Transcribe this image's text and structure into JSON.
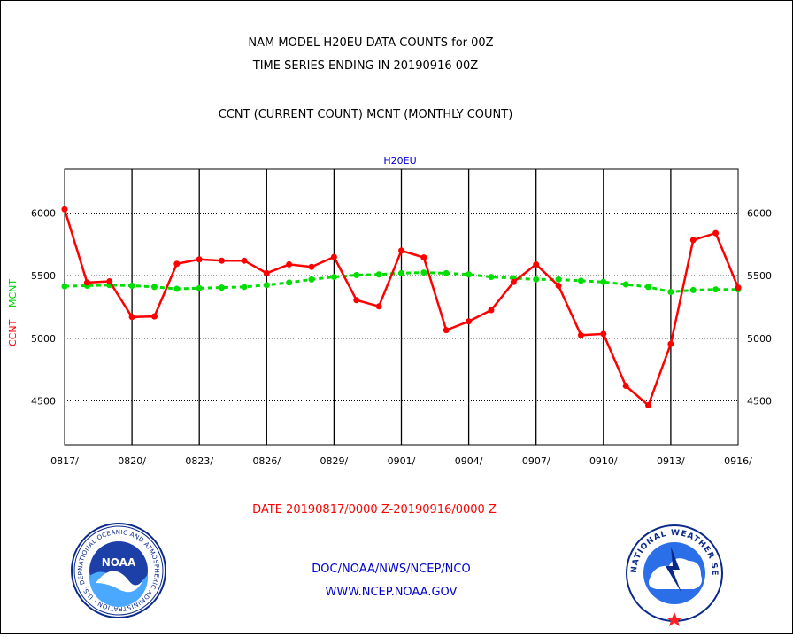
{
  "header": {
    "title_line1": "NAM MODEL H20EU DATA COUNTS for 00Z",
    "title_line2": "TIME SERIES ENDING IN 20190916 00Z",
    "subtitle": "CCNT (CURRENT COUNT) MCNT (MONTHLY COUNT)"
  },
  "footer": {
    "date_range": "DATE 20190817/0000 Z-20190916/0000 Z",
    "org_line": "DOC/NOAA/NWS/NCEP/NCO",
    "url_line": "WWW.NCEP.NOAA.GOV"
  },
  "logos": {
    "noaa_text": "NOAA",
    "noaa_ring_text": "NATIONAL OCEANIC AND ATMOSPHERIC ADMINISTRATION · U.S. DEPARTMENT OF COMMERCE ·",
    "nws_ring_text": "NATIONAL WEATHER SERVICE"
  },
  "colors": {
    "ccnt": "#ff0000",
    "mcnt": "#00dd00",
    "label_blue": "#0000cc",
    "grid": "#000000"
  },
  "chart_data": {
    "type": "line",
    "title": "H20EU",
    "ylabel_ccnt": "CCNT",
    "ylabel_mcnt": "MCNT",
    "ylim": [
      4150,
      6350
    ],
    "yticks": [
      4500,
      5000,
      5500,
      6000
    ],
    "xticks": [
      "0817/",
      "0820/",
      "0823/",
      "0826/",
      "0829/",
      "0901/",
      "0904/",
      "0907/",
      "0910/",
      "0913/",
      "0916/"
    ],
    "grid": true,
    "x_dates": [
      "0817",
      "0818",
      "0819",
      "0820",
      "0821",
      "0822",
      "0823",
      "0824",
      "0825",
      "0826",
      "0827",
      "0828",
      "0829",
      "0830",
      "0831",
      "0901",
      "0902",
      "0903",
      "0904",
      "0905",
      "0906",
      "0907",
      "0908",
      "0909",
      "0910",
      "0911",
      "0912",
      "0913",
      "0914",
      "0915",
      "0916"
    ],
    "series": [
      {
        "name": "CCNT",
        "style": "solid",
        "values": [
          6030,
          5445,
          5455,
          5170,
          5175,
          5595,
          5630,
          5620,
          5620,
          5520,
          5590,
          5570,
          5650,
          5305,
          5255,
          5700,
          5645,
          5065,
          5135,
          5225,
          5450,
          5590,
          5420,
          5025,
          5035,
          4620,
          4465,
          4955,
          5785,
          5840,
          5405
        ]
      },
      {
        "name": "MCNT",
        "style": "dashed",
        "values": [
          5415,
          5420,
          5425,
          5420,
          5410,
          5395,
          5400,
          5405,
          5410,
          5425,
          5445,
          5470,
          5490,
          5505,
          5510,
          5520,
          5525,
          5520,
          5510,
          5490,
          5480,
          5470,
          5470,
          5460,
          5450,
          5430,
          5410,
          5370,
          5385,
          5390,
          5390
        ]
      }
    ]
  }
}
